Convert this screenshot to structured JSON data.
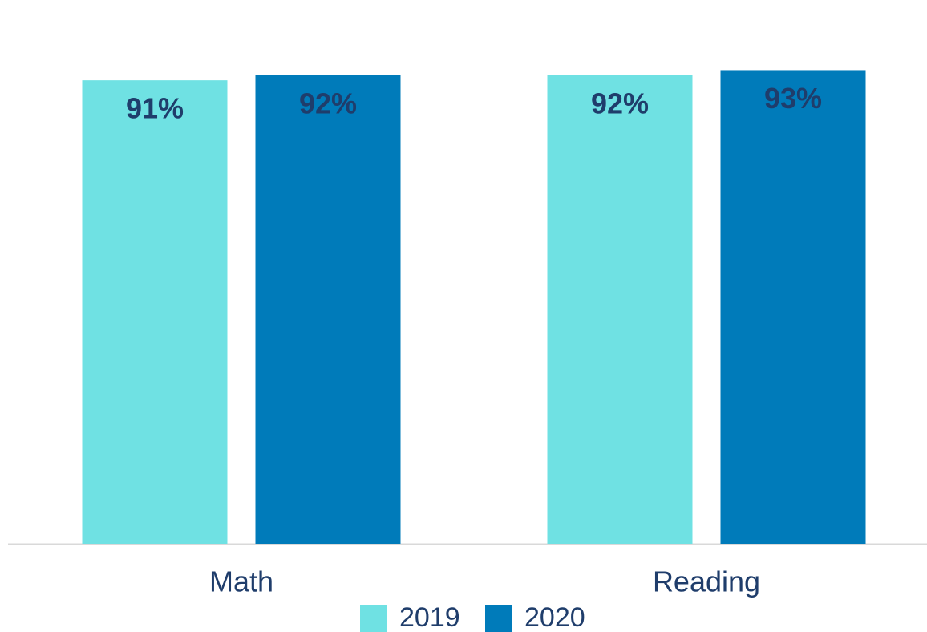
{
  "chart_data": {
    "type": "bar",
    "categories": [
      "Math",
      "Reading"
    ],
    "series": [
      {
        "name": "2019",
        "color": "#6fe1e3",
        "values": [
          91,
          92
        ],
        "value_labels": [
          "91%",
          "92%"
        ]
      },
      {
        "name": "2020",
        "color": "#007bba",
        "values": [
          92,
          93
        ],
        "value_labels": [
          "92%",
          "93%"
        ]
      }
    ],
    "ylim": [
      0,
      100
    ],
    "legend": "bottom"
  }
}
